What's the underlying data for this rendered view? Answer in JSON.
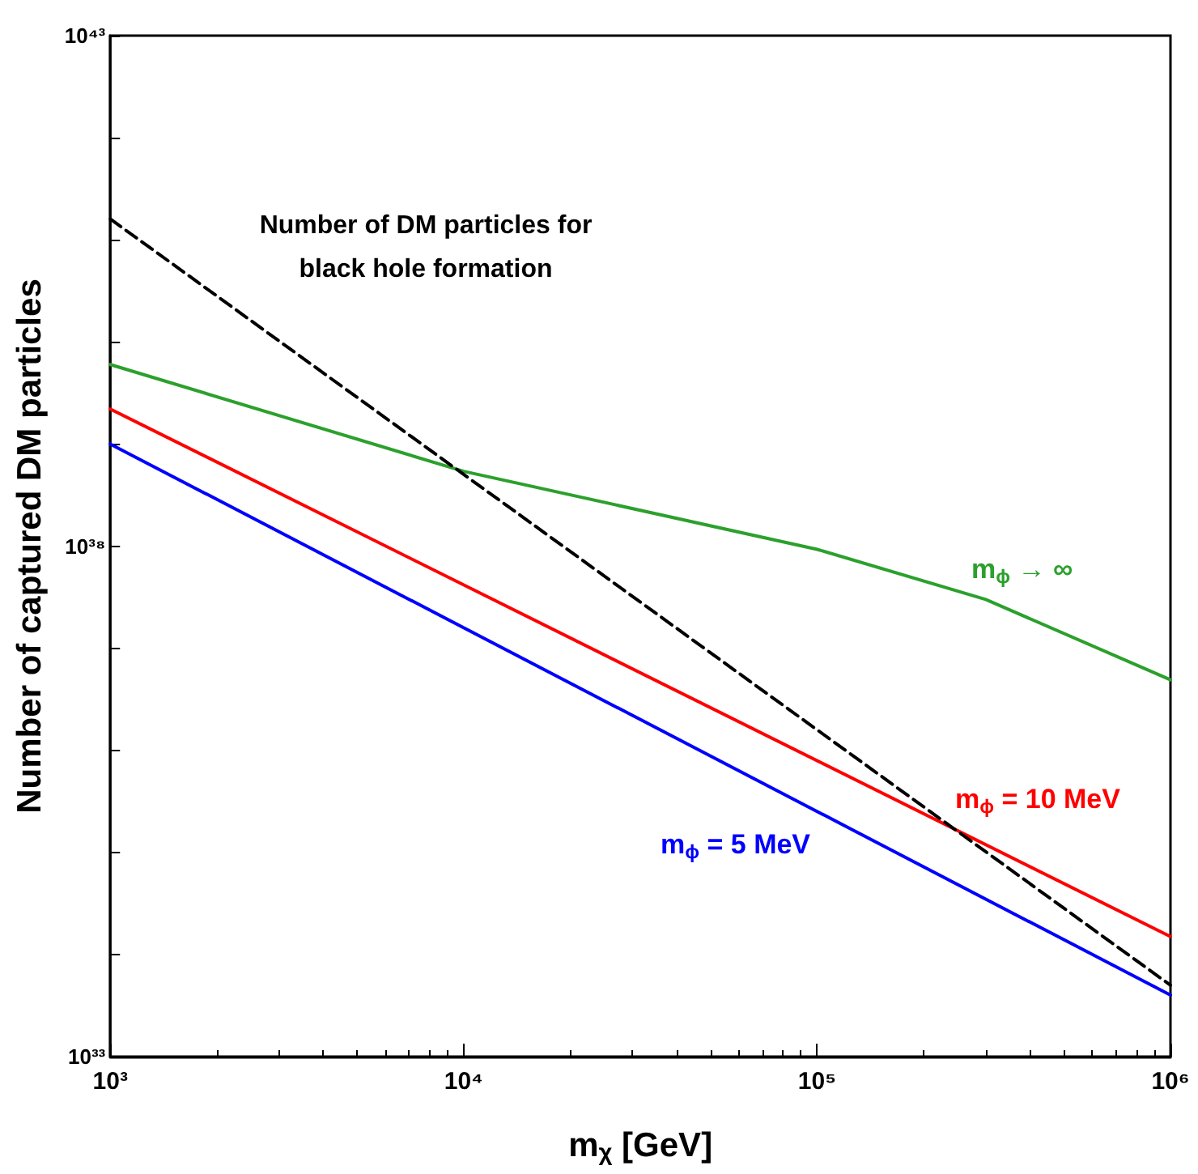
{
  "chart_data": {
    "type": "line",
    "xlabel": "m$_{χ}$ [GeV]",
    "ylabel": "Number of captured DM particles",
    "log": "xy",
    "grid": false,
    "legend": false,
    "marker": "none",
    "annotations": [
      "Number of DM particles for\nblack hole formation"
    ],
    "xlim": [
      1000,
      1000000
    ],
    "xticks": [
      {
        "value": 1000,
        "label": "10³"
      },
      {
        "value": 10000,
        "label": "10⁴"
      },
      {
        "value": 100000,
        "label": "10⁵"
      },
      {
        "value": 1000000,
        "label": "10⁶"
      }
    ],
    "ylim": [
      1e+33,
      1e+43
    ],
    "yticks": [
      {
        "value": 1e+33,
        "label": "10³³"
      },
      {
        "value": 1e+34,
        "label": null
      },
      {
        "value": 1e+35,
        "label": null
      },
      {
        "value": 1e+36,
        "label": null
      },
      {
        "value": 1e+37,
        "label": null
      },
      {
        "value": 1e+38,
        "label": "10³⁸"
      },
      {
        "value": 1e+39,
        "label": null
      },
      {
        "value": 1e+40,
        "label": null
      },
      {
        "value": 1e+41,
        "label": null
      },
      {
        "value": 1e+42,
        "label": null
      },
      {
        "value": 1e+43,
        "label": "10⁴³"
      }
    ],
    "series": [
      {
        "name": "m$_{ϕ}$ → ∞",
        "color": "#2ca02c",
        "line_style": "solid",
        "x": [
          1000,
          10000,
          100000,
          300000,
          1000000
        ],
        "values": [
          6e+39,
          5.4e+38,
          9.3e+37,
          3e+37,
          4.9e+36
        ]
      },
      {
        "name": "m$_{ϕ}$ = 10 MeV",
        "color": "#ff0000",
        "line_style": "solid",
        "x": [
          1000,
          1000000
        ],
        "values": [
          2.2e+39,
          1.5e+34
        ]
      },
      {
        "name": "m$_{ϕ}$ = 5 MeV",
        "color": "#0000ff",
        "line_style": "solid",
        "x": [
          1000,
          1000000
        ],
        "values": [
          1e+39,
          4e+33
        ]
      },
      {
        "color": "#000000",
        "line_style": "dashed",
        "x": [
          1000,
          1000000
        ],
        "values": [
          1.6e+41,
          5e+33
        ]
      }
    ]
  }
}
